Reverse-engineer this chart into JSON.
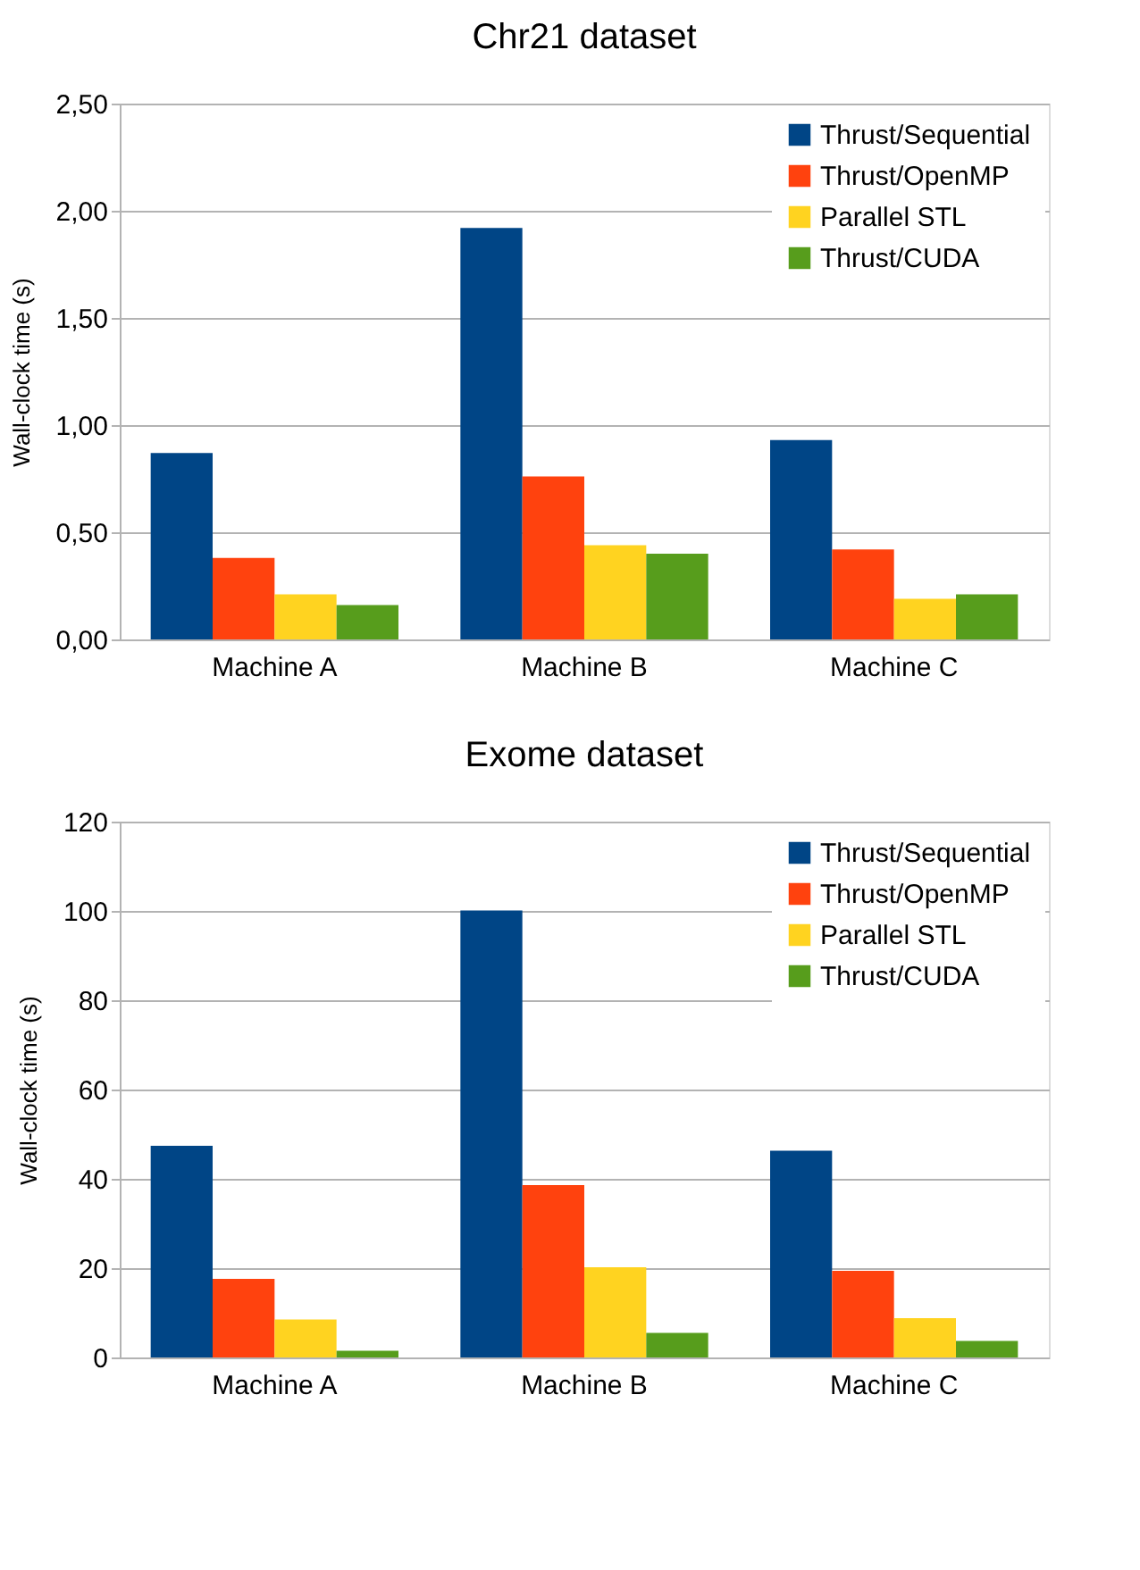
{
  "chart_data": [
    {
      "type": "bar",
      "title": "Chr21 dataset",
      "ylabel": "Wall-clock time (s)",
      "categories": [
        "Machine A",
        "Machine B",
        "Machine C"
      ],
      "series": [
        {
          "name": "Thrust/Sequential",
          "color": "#004586",
          "values": [
            0.87,
            1.92,
            0.93
          ]
        },
        {
          "name": "Thrust/OpenMP",
          "color": "#ff420e",
          "values": [
            0.38,
            0.76,
            0.42
          ]
        },
        {
          "name": "Parallel STL",
          "color": "#ffd320",
          "values": [
            0.21,
            0.44,
            0.19
          ]
        },
        {
          "name": "Thrust/CUDA",
          "color": "#579d1c",
          "values": [
            0.16,
            0.4,
            0.21
          ]
        }
      ],
      "ylim": [
        0,
        2.5
      ],
      "yticks": [
        {
          "value": 0,
          "label": "0,00"
        },
        {
          "value": 0.5,
          "label": "0,50"
        },
        {
          "value": 1,
          "label": "1,00"
        },
        {
          "value": 1.5,
          "label": "1,50"
        },
        {
          "value": 2,
          "label": "2,00"
        },
        {
          "value": 2.5,
          "label": "2,50"
        }
      ],
      "grid": "y",
      "legend": "top right"
    },
    {
      "type": "bar",
      "title": "Exome dataset",
      "ylabel": "Wall-clock time (s)",
      "categories": [
        "Machine A",
        "Machine B",
        "Machine C"
      ],
      "series": [
        {
          "name": "Thrust/Sequential",
          "color": "#004586",
          "values": [
            47.4,
            100.1,
            46.3
          ]
        },
        {
          "name": "Thrust/OpenMP",
          "color": "#ff420e",
          "values": [
            17.6,
            38.6,
            19.4
          ]
        },
        {
          "name": "Parallel STL",
          "color": "#ffd320",
          "values": [
            8.5,
            20.2,
            8.8
          ]
        },
        {
          "name": "Thrust/CUDA",
          "color": "#579d1c",
          "values": [
            1.5,
            5.5,
            3.7
          ]
        }
      ],
      "ylim": [
        0,
        120
      ],
      "yticks": [
        0,
        20,
        40,
        60,
        80,
        100,
        120
      ],
      "grid": "y",
      "legend": "top right"
    }
  ]
}
